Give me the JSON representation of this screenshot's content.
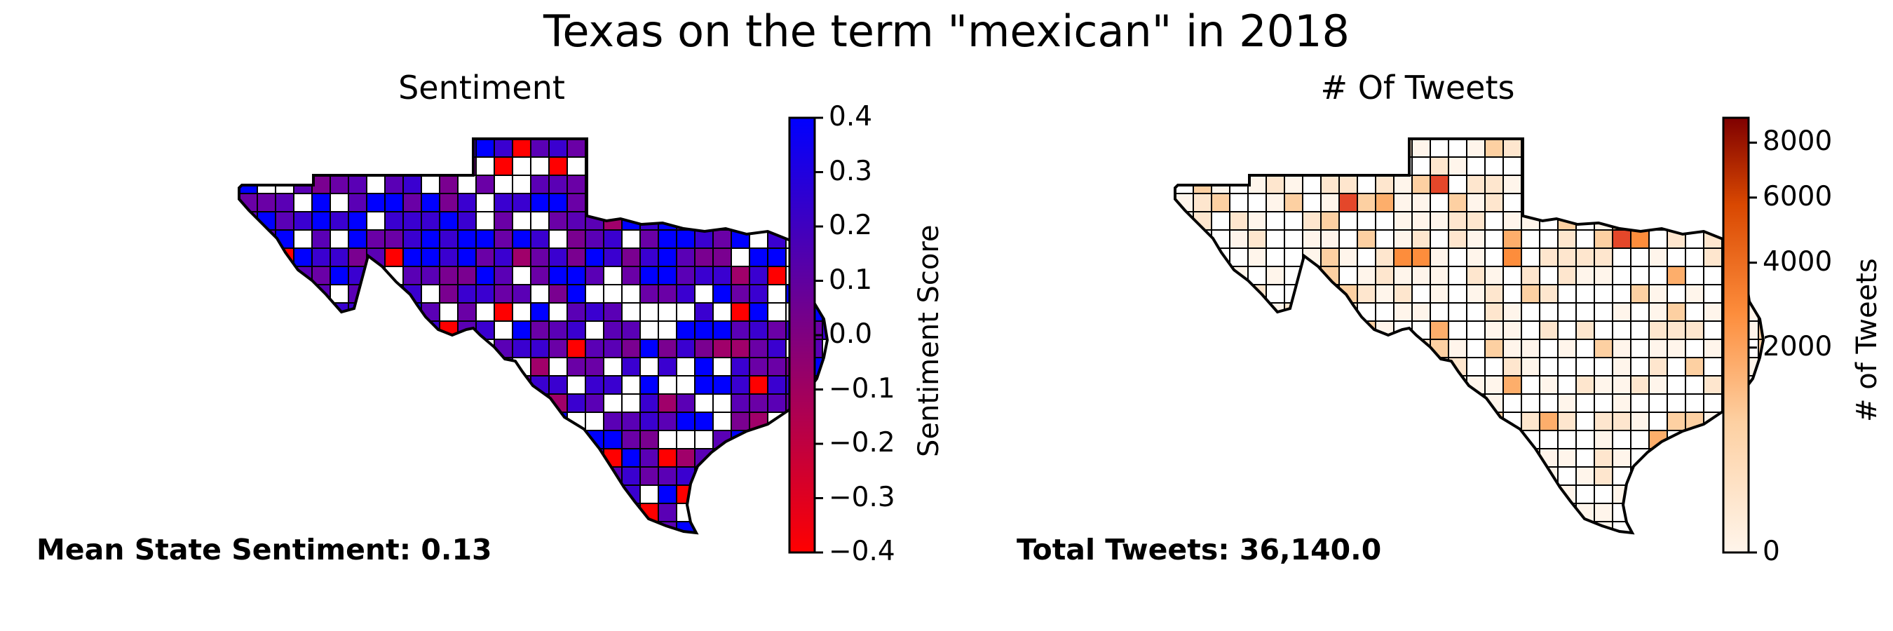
{
  "figure": {
    "title": "Texas on the term \"mexican\" in 2018"
  },
  "panels": [
    {
      "title": "Sentiment",
      "stat_text": "Mean State Sentiment: 0.13",
      "colorbar": {
        "label": "Sentiment Score",
        "ticks": [
          "0.4",
          "0.3",
          "0.2",
          "0.1",
          "0.0",
          "−0.1",
          "−0.2",
          "−0.3",
          "−0.4"
        ],
        "tick_values": [
          0.4,
          0.3,
          0.2,
          0.1,
          0.0,
          -0.1,
          -0.2,
          -0.3,
          -0.4
        ],
        "range": [
          -0.4,
          0.4
        ],
        "colors": [
          "#ff0000",
          "#0000ff"
        ]
      },
      "fill_palette": [
        "#0000ff",
        "#3a00d0",
        "#5a00b5",
        "#6a00a6",
        "#7a0090",
        "#a0006a",
        "#ff0000"
      ],
      "no_data_color": "#ffffff"
    },
    {
      "title": "# Of Tweets",
      "stat_text": "Total Tweets: 36,140.0",
      "colorbar": {
        "label": "# of Tweets",
        "ticks": [
          "8000",
          "6000",
          "4000",
          "2000",
          "0"
        ],
        "tick_values": [
          8000,
          6000,
          4000,
          2000,
          0
        ],
        "range": [
          0,
          9000
        ],
        "scale": "sqrt",
        "colors": [
          "#fff5eb",
          "#fdd0a2",
          "#fd8d3c",
          "#d94801",
          "#7f0000"
        ]
      },
      "fill_palette": [
        "#fff5eb",
        "#fee6ce",
        "#fdd0a2",
        "#fdae6b",
        "#fd8d3c",
        "#e4472a",
        "#c92a26"
      ],
      "no_data_color": "#ffffff"
    }
  ]
}
